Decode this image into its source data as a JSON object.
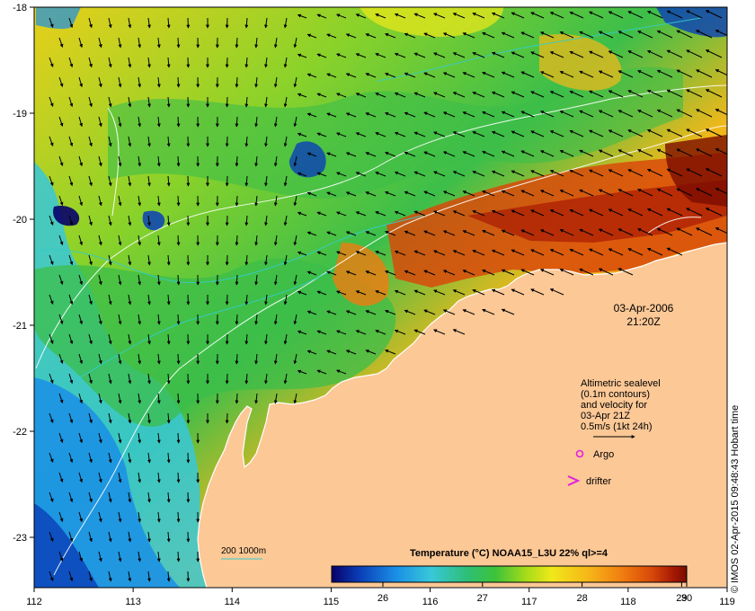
{
  "map": {
    "date_line1": "03-Apr-2006",
    "date_line2": "21:20Z",
    "legend": {
      "line1": "Altimetric sealevel",
      "line2": "(0.1m contours)",
      "line3": "and velocity for",
      "line4": "03-Apr 21Z",
      "line5": "0.5m/s (1kt 24h)",
      "argo_label": "Argo",
      "drifter_label": "drifter"
    },
    "depth_legend": "200  1000m",
    "colorbar": {
      "title": "Temperature (°C) NOAA15_L3U 22% ql>=4",
      "ticks": [
        "26",
        "27",
        "28",
        "29",
        "30"
      ],
      "colors": [
        "#08006a",
        "#0a3fb8",
        "#1a8ee6",
        "#38c8d8",
        "#2ebe78",
        "#3cc23a",
        "#a8dc18",
        "#f0e81a",
        "#f6b818",
        "#f07c10",
        "#d84a0a",
        "#a81a04",
        "#7a0c00"
      ]
    },
    "x_ticks": [
      "112",
      "113",
      "114",
      "115",
      "116",
      "117",
      "118",
      "119"
    ],
    "y_ticks": [
      "-18",
      "-19",
      "-20",
      "-21",
      "-22",
      "-23"
    ],
    "credit": "© IMOS 02-Apr-2015 09:48:43 Hobart time",
    "colors": {
      "land": "#fcc896",
      "frame": "#000000"
    }
  }
}
